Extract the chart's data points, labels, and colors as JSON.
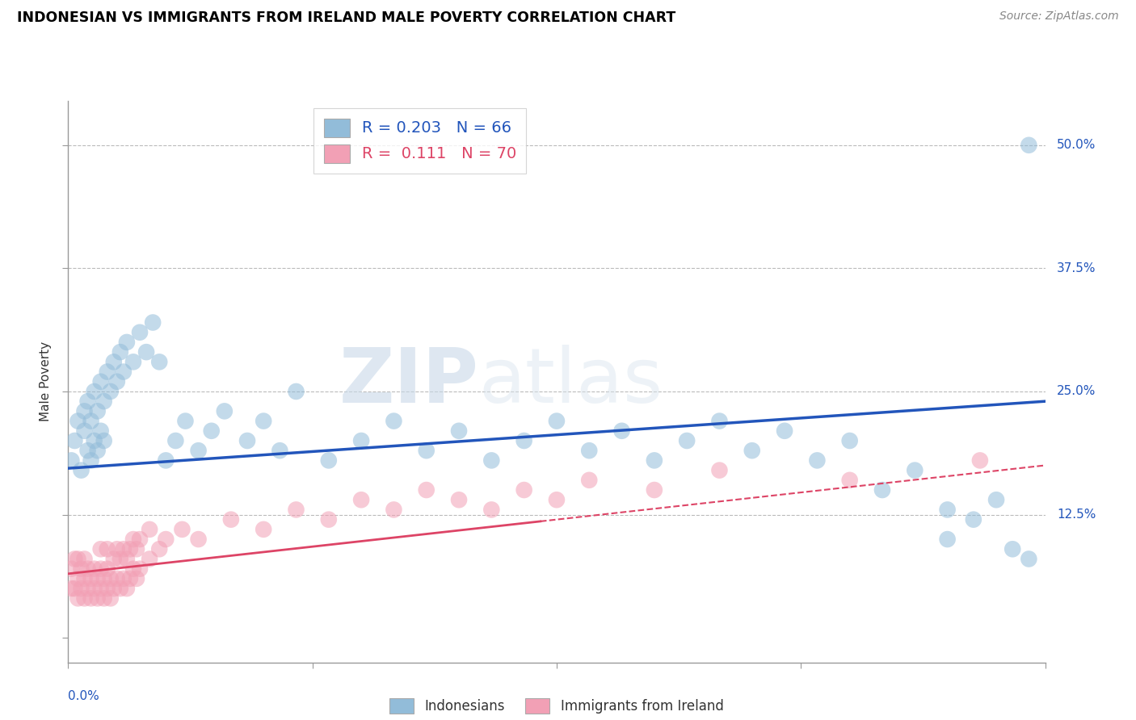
{
  "title": "INDONESIAN VS IMMIGRANTS FROM IRELAND MALE POVERTY CORRELATION CHART",
  "source": "Source: ZipAtlas.com",
  "ylabel": "Male Poverty",
  "yticks": [
    0.0,
    0.125,
    0.25,
    0.375,
    0.5
  ],
  "ytick_labels": [
    "",
    "12.5%",
    "25.0%",
    "37.5%",
    "50.0%"
  ],
  "xmin": 0.0,
  "xmax": 0.3,
  "ymin": -0.025,
  "ymax": 0.545,
  "r_indonesian": 0.203,
  "n_indonesian": 66,
  "r_ireland": 0.111,
  "n_ireland": 70,
  "color_indonesian": "#92BCD9",
  "color_ireland": "#F2A0B5",
  "trendline_indonesian": "#2255BB",
  "trendline_ireland": "#DD4466",
  "watermark_zip": "ZIP",
  "watermark_atlas": "atlas",
  "indonesian_x": [
    0.001,
    0.002,
    0.003,
    0.004,
    0.005,
    0.005,
    0.006,
    0.006,
    0.007,
    0.007,
    0.008,
    0.008,
    0.009,
    0.009,
    0.01,
    0.01,
    0.011,
    0.011,
    0.012,
    0.013,
    0.014,
    0.015,
    0.016,
    0.017,
    0.018,
    0.02,
    0.022,
    0.024,
    0.026,
    0.028,
    0.03,
    0.033,
    0.036,
    0.04,
    0.044,
    0.048,
    0.055,
    0.06,
    0.065,
    0.07,
    0.08,
    0.09,
    0.1,
    0.11,
    0.12,
    0.13,
    0.14,
    0.15,
    0.16,
    0.17,
    0.18,
    0.19,
    0.2,
    0.21,
    0.22,
    0.23,
    0.24,
    0.25,
    0.26,
    0.27,
    0.278,
    0.285,
    0.29,
    0.295,
    0.27,
    0.295
  ],
  "indonesian_y": [
    0.18,
    0.2,
    0.22,
    0.17,
    0.21,
    0.23,
    0.19,
    0.24,
    0.18,
    0.22,
    0.2,
    0.25,
    0.19,
    0.23,
    0.21,
    0.26,
    0.2,
    0.24,
    0.27,
    0.25,
    0.28,
    0.26,
    0.29,
    0.27,
    0.3,
    0.28,
    0.31,
    0.29,
    0.32,
    0.28,
    0.18,
    0.2,
    0.22,
    0.19,
    0.21,
    0.23,
    0.2,
    0.22,
    0.19,
    0.25,
    0.18,
    0.2,
    0.22,
    0.19,
    0.21,
    0.18,
    0.2,
    0.22,
    0.19,
    0.21,
    0.18,
    0.2,
    0.22,
    0.19,
    0.21,
    0.18,
    0.2,
    0.15,
    0.17,
    0.13,
    0.12,
    0.14,
    0.09,
    0.08,
    0.1,
    0.5
  ],
  "ireland_x": [
    0.001,
    0.001,
    0.002,
    0.002,
    0.003,
    0.003,
    0.003,
    0.004,
    0.004,
    0.005,
    0.005,
    0.005,
    0.006,
    0.006,
    0.007,
    0.007,
    0.008,
    0.008,
    0.009,
    0.009,
    0.01,
    0.01,
    0.01,
    0.011,
    0.011,
    0.012,
    0.012,
    0.012,
    0.013,
    0.013,
    0.014,
    0.014,
    0.015,
    0.015,
    0.016,
    0.016,
    0.017,
    0.017,
    0.018,
    0.018,
    0.019,
    0.019,
    0.02,
    0.02,
    0.021,
    0.021,
    0.022,
    0.022,
    0.025,
    0.025,
    0.028,
    0.03,
    0.035,
    0.04,
    0.05,
    0.06,
    0.07,
    0.08,
    0.09,
    0.1,
    0.11,
    0.12,
    0.13,
    0.14,
    0.15,
    0.16,
    0.18,
    0.2,
    0.24,
    0.28
  ],
  "ireland_y": [
    0.05,
    0.07,
    0.05,
    0.08,
    0.04,
    0.06,
    0.08,
    0.05,
    0.07,
    0.04,
    0.06,
    0.08,
    0.05,
    0.07,
    0.04,
    0.06,
    0.05,
    0.07,
    0.04,
    0.06,
    0.05,
    0.07,
    0.09,
    0.04,
    0.06,
    0.05,
    0.07,
    0.09,
    0.04,
    0.06,
    0.05,
    0.08,
    0.06,
    0.09,
    0.05,
    0.08,
    0.06,
    0.09,
    0.05,
    0.08,
    0.06,
    0.09,
    0.07,
    0.1,
    0.06,
    0.09,
    0.07,
    0.1,
    0.08,
    0.11,
    0.09,
    0.1,
    0.11,
    0.1,
    0.12,
    0.11,
    0.13,
    0.12,
    0.14,
    0.13,
    0.15,
    0.14,
    0.13,
    0.15,
    0.14,
    0.16,
    0.15,
    0.17,
    0.16,
    0.18
  ],
  "trend_ind_y0": 0.172,
  "trend_ind_y1": 0.24,
  "trend_ire_y0": 0.065,
  "trend_ire_y1": 0.175
}
